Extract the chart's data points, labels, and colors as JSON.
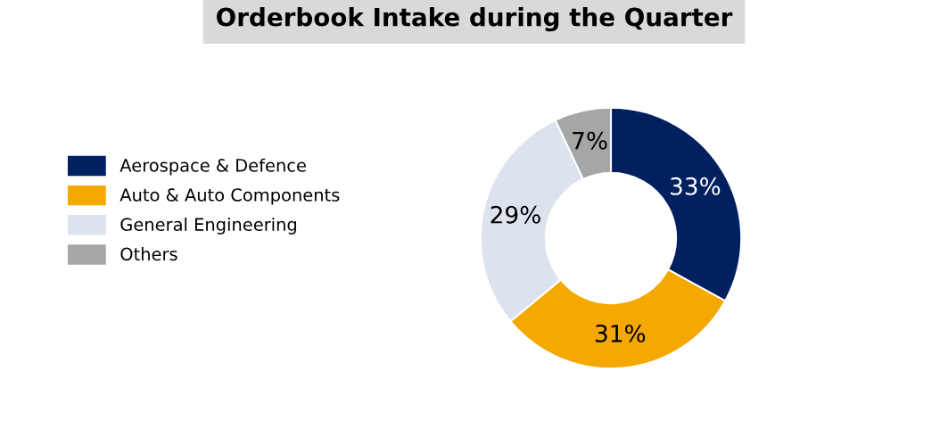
{
  "chart_data": {
    "type": "donut",
    "title": "Orderbook Intake during the Quarter",
    "categories": [
      "Aerospace & Defence",
      "Auto & Auto Components",
      "General Engineering",
      "Others"
    ],
    "values": [
      33,
      31,
      29,
      7
    ],
    "colors": [
      "#002060",
      "#f5a800",
      "#dde3ee",
      "#a6a6a6"
    ],
    "value_labels": [
      "33%",
      "31%",
      "29%",
      "7%"
    ],
    "legend": "left"
  }
}
